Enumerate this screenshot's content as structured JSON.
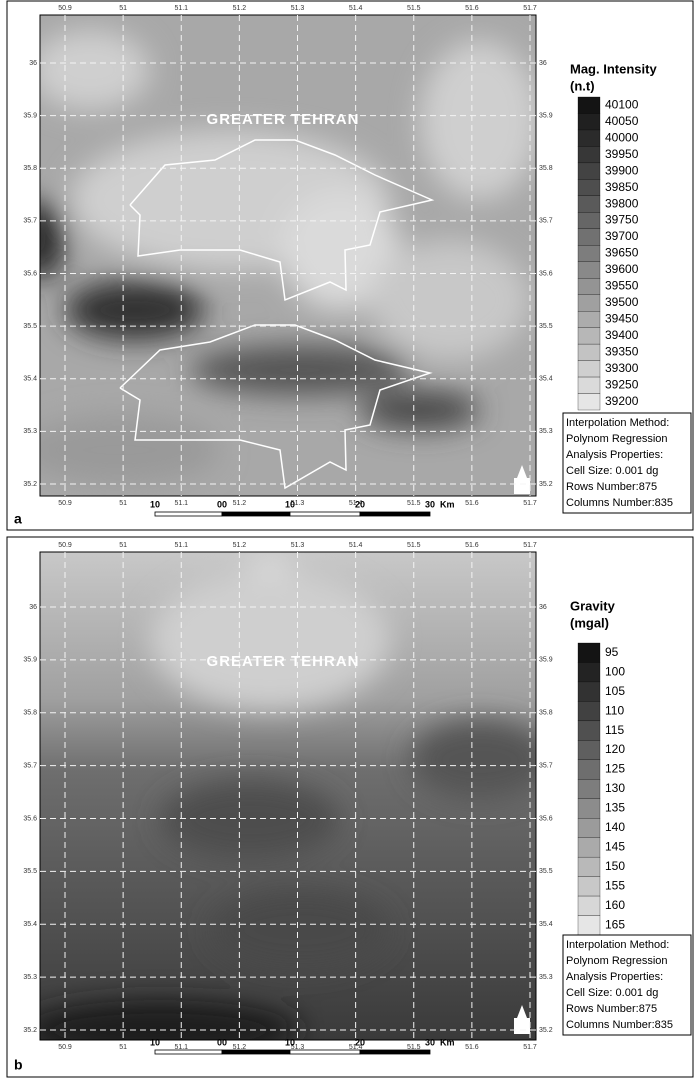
{
  "lon_ticks": [
    50.9,
    51,
    51.1,
    51.2,
    51.3,
    51.4,
    51.5,
    51.6,
    51.7
  ],
  "lat_ticks": [
    36,
    35.9,
    35.8,
    35.7,
    35.6,
    35.5,
    35.4,
    35.3,
    35.2
  ],
  "panels": [
    {
      "label": "a",
      "title": "GREATER TEHRAN",
      "legend_title": "Mag. Intensity",
      "legend_unit": "(n.t)",
      "legend_labels": [
        "40100",
        "40050",
        "40000",
        "39950",
        "39900",
        "39850",
        "39800",
        "39750",
        "39700",
        "39650",
        "39600",
        "39550",
        "39500",
        "39450",
        "39400",
        "39350",
        "39300",
        "39250",
        "39200"
      ],
      "info": [
        "Interpolation Method:",
        "Polynom Regression",
        "Analysis Properties:",
        "Cell Size: 0.001 dg",
        "Rows Number:875",
        "Columns Number:835"
      ],
      "scale_labels": [
        "10",
        "00",
        "10",
        "20",
        "30"
      ],
      "scale_unit": "Km"
    },
    {
      "label": "b",
      "title": "GREATER TEHRAN",
      "legend_title": "Gravity",
      "legend_unit": "(mgal)",
      "legend_labels": [
        "95",
        "100",
        "105",
        "110",
        "115",
        "120",
        "125",
        "130",
        "135",
        "140",
        "145",
        "150",
        "155",
        "160",
        "165"
      ],
      "info": [
        "Interpolation Method:",
        "Polynom Regression",
        "Analysis Properties:",
        "Cell Size: 0.001 dg",
        "Rows Number:875",
        "Columns Number:835"
      ],
      "scale_labels": [
        "10",
        "00",
        "10",
        "20",
        "30"
      ],
      "scale_unit": "Km"
    }
  ]
}
